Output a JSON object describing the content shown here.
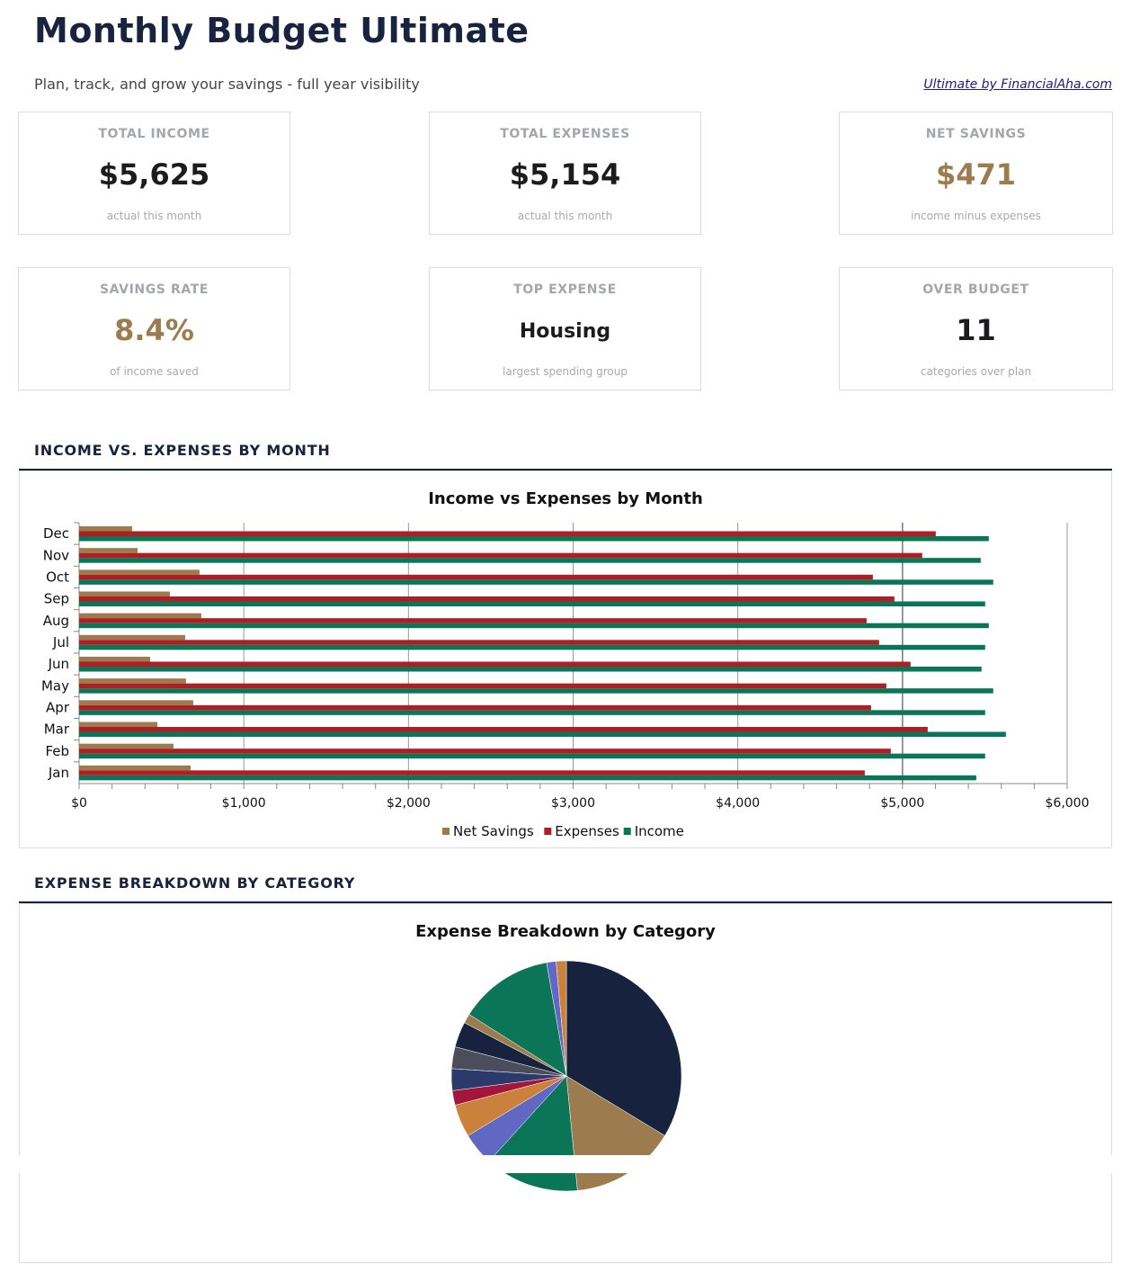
{
  "header": {
    "title": "Monthly Budget Ultimate",
    "subtitle": "Plan, track, and grow your savings - full year visibility",
    "brand_link": "Ultimate by FinancialAha.com"
  },
  "kpis": [
    {
      "label": "TOTAL INCOME",
      "value": "$5,625",
      "sub": "actual this month"
    },
    {
      "label": "TOTAL EXPENSES",
      "value": "$5,154",
      "sub": "actual this month"
    },
    {
      "label": "NET SAVINGS",
      "value": "$471",
      "sub": "income minus expenses"
    },
    {
      "label": "SAVINGS RATE",
      "value": "8.4%",
      "sub": "of income saved"
    },
    {
      "label": "TOP EXPENSE",
      "value": "Housing",
      "sub": "largest spending group"
    },
    {
      "label": "OVER BUDGET",
      "value": "11",
      "sub": "categories over plan"
    }
  ],
  "colors": {
    "navy": "#17233f",
    "gold": "#9c7b4f",
    "net_savings": "#9c7b4f",
    "expenses": "#b01e23",
    "income": "#0b7557"
  },
  "sections": {
    "income_vs_expenses": "INCOME VS. EXPENSES BY MONTH",
    "expense_breakdown": "EXPENSE BREAKDOWN BY CATEGORY"
  },
  "chart_data": [
    {
      "type": "bar",
      "orientation": "horizontal",
      "title": "Income vs Expenses by Month",
      "categories": [
        "Jan",
        "Feb",
        "Mar",
        "Apr",
        "May",
        "Jun",
        "Jul",
        "Aug",
        "Sep",
        "Oct",
        "Nov",
        "Dec"
      ],
      "series": [
        {
          "name": "Net Savings",
          "color": "#9c7b4f",
          "values": [
            677,
            573,
            475,
            693,
            649,
            431,
            644,
            742,
            551,
            731,
            355,
            322
          ]
        },
        {
          "name": "Expenses",
          "color": "#b01e23",
          "values": [
            4771,
            4929,
            5153,
            4809,
            4902,
            5049,
            4858,
            4782,
            4951,
            4820,
            5120,
            5202
          ]
        },
        {
          "name": "Income",
          "color": "#0b7557",
          "values": [
            5448,
            5502,
            5628,
            5502,
            5551,
            5480,
            5502,
            5524,
            5502,
            5551,
            5475,
            5524
          ]
        }
      ],
      "xlim": [
        0,
        6000
      ],
      "x_ticks": [
        "$0",
        "$1,000",
        "$2,000",
        "$3,000",
        "$4,000",
        "$5,000",
        "$6,000"
      ],
      "grid": true,
      "legend": "bottom"
    },
    {
      "type": "pie",
      "title": "Expense Breakdown by Category",
      "values": [
        33,
        14.5,
        13,
        4.5,
        4.5,
        2,
        3,
        3,
        3.5,
        1.3,
        13,
        1.3,
        1.4
      ],
      "colors": [
        "#16223e",
        "#9c7b4f",
        "#0b7557",
        "#6068c4",
        "#c9813c",
        "#a3153a",
        "#2b3a6b",
        "#4a4e5c",
        "#16223e",
        "#9c7b4f",
        "#0b7557",
        "#6068c4",
        "#c9813c"
      ]
    }
  ]
}
